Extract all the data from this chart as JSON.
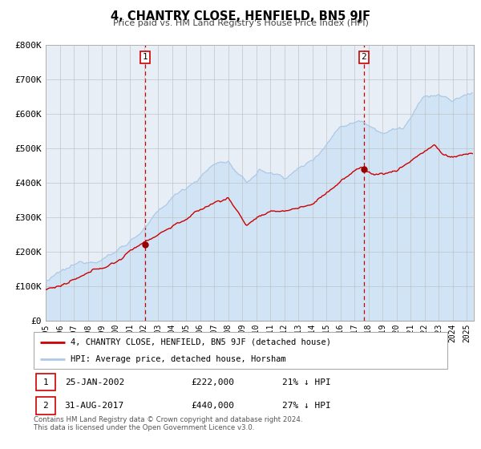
{
  "title": "4, CHANTRY CLOSE, HENFIELD, BN5 9JF",
  "subtitle": "Price paid vs. HM Land Registry's House Price Index (HPI)",
  "ylim": [
    0,
    800000
  ],
  "yticks": [
    0,
    100000,
    200000,
    300000,
    400000,
    500000,
    600000,
    700000,
    800000
  ],
  "ytick_labels": [
    "£0",
    "£100K",
    "£200K",
    "£300K",
    "£400K",
    "£500K",
    "£600K",
    "£700K",
    "£800K"
  ],
  "xlim_start": 1995.0,
  "xlim_end": 2025.5,
  "hpi_color": "#adc9e8",
  "hpi_fill_color": "#d0e4f5",
  "price_color": "#cc0000",
  "sale1_date": 2002.07,
  "sale1_price": 222000,
  "sale2_date": 2017.67,
  "sale2_price": 440000,
  "legend_label1": "4, CHANTRY CLOSE, HENFIELD, BN5 9JF (detached house)",
  "legend_label2": "HPI: Average price, detached house, Horsham",
  "info1_date": "25-JAN-2002",
  "info1_price": "£222,000",
  "info1_pct": "21% ↓ HPI",
  "info2_date": "31-AUG-2017",
  "info2_price": "£440,000",
  "info2_pct": "27% ↓ HPI",
  "footer1": "Contains HM Land Registry data © Crown copyright and database right 2024.",
  "footer2": "This data is licensed under the Open Government Licence v3.0.",
  "bg_color": "#e8eef5",
  "grid_color": "#bbbbbb"
}
